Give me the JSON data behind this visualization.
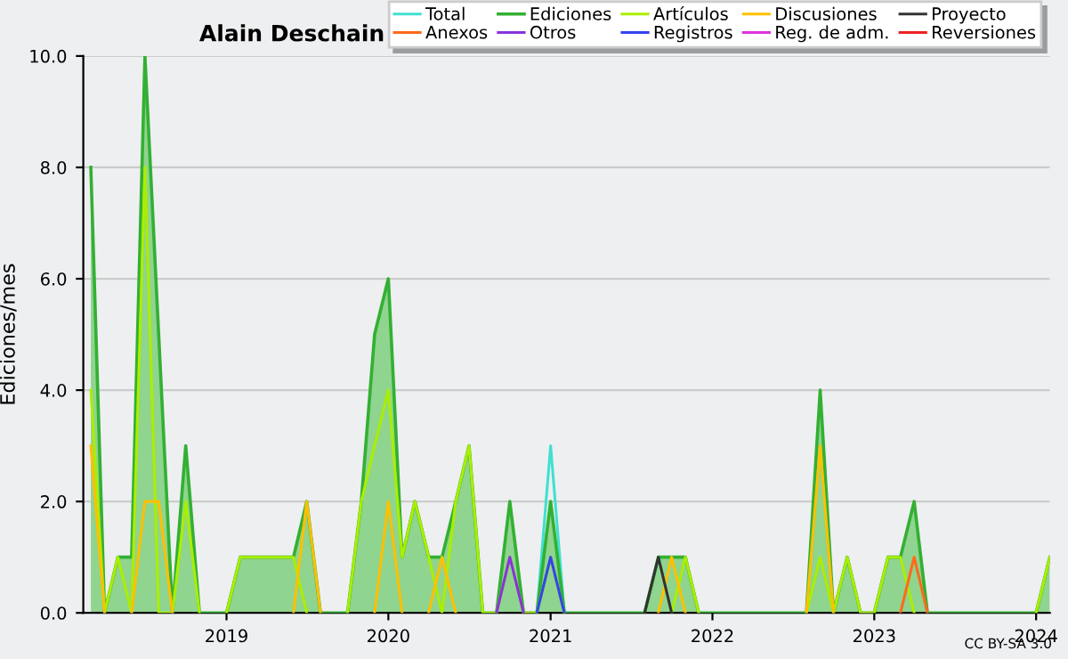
{
  "chart_data": {
    "type": "line",
    "title": "Alain Deschain",
    "ylabel": "Ediciones/mes",
    "x": [
      "2018-03",
      "2018-04",
      "2018-05",
      "2018-06",
      "2018-07",
      "2018-08",
      "2018-09",
      "2018-10",
      "2018-11",
      "2018-12",
      "2019-01",
      "2019-02",
      "2019-03",
      "2019-04",
      "2019-05",
      "2019-06",
      "2019-07",
      "2019-08",
      "2019-09",
      "2019-10",
      "2019-11",
      "2019-12",
      "2020-01",
      "2020-02",
      "2020-03",
      "2020-04",
      "2020-05",
      "2020-06",
      "2020-07",
      "2020-08",
      "2020-09",
      "2020-10",
      "2020-11",
      "2020-12",
      "2021-01",
      "2021-02",
      "2021-03",
      "2021-04",
      "2021-05",
      "2021-06",
      "2021-07",
      "2021-08",
      "2021-09",
      "2021-10",
      "2021-11",
      "2021-12",
      "2022-01",
      "2022-02",
      "2022-03",
      "2022-04",
      "2022-05",
      "2022-06",
      "2022-07",
      "2022-08",
      "2022-09",
      "2022-10",
      "2022-11",
      "2022-12",
      "2023-01",
      "2023-02",
      "2023-03",
      "2023-04",
      "2023-05",
      "2023-06",
      "2023-07",
      "2023-08",
      "2023-09",
      "2023-10",
      "2023-11",
      "2023-12",
      "2024-01",
      "2024-02"
    ],
    "series": [
      {
        "name": "Total",
        "color": "#40e0d0",
        "values": [
          null,
          null,
          null,
          null,
          null,
          null,
          null,
          null,
          null,
          null,
          null,
          null,
          null,
          null,
          null,
          null,
          null,
          null,
          null,
          null,
          null,
          null,
          null,
          null,
          null,
          null,
          null,
          null,
          null,
          null,
          null,
          null,
          null,
          0,
          3,
          0,
          null,
          null,
          null,
          null,
          null,
          null,
          null,
          null,
          null,
          null,
          null,
          null,
          null,
          null,
          null,
          null,
          null,
          null,
          null,
          null,
          null,
          null,
          null,
          null,
          null,
          null,
          null,
          null,
          null,
          null,
          null,
          null,
          null,
          null,
          null,
          null
        ]
      },
      {
        "name": "Ediciones",
        "type": "area",
        "color": "#33b033",
        "values": [
          8,
          0,
          1,
          1,
          10,
          5,
          0,
          3,
          0,
          0,
          0,
          1,
          1,
          1,
          1,
          1,
          2,
          0,
          0,
          0,
          2,
          5,
          6,
          1,
          2,
          1,
          1,
          2,
          3,
          0,
          0,
          2,
          0,
          0,
          2,
          0,
          0,
          0,
          0,
          0,
          0,
          0,
          1,
          1,
          1,
          0,
          0,
          0,
          0,
          0,
          0,
          0,
          0,
          0,
          4,
          0,
          1,
          0,
          0,
          1,
          1,
          2,
          0,
          0,
          0,
          0,
          0,
          0,
          0,
          0,
          0,
          1
        ]
      },
      {
        "name": "Artículos",
        "color": "#aaee00",
        "values": [
          4,
          0,
          1,
          0,
          8,
          0,
          0,
          2,
          0,
          null,
          0,
          1,
          1,
          1,
          1,
          1,
          0,
          null,
          null,
          0,
          2,
          3,
          4,
          1,
          2,
          1,
          0,
          2,
          3,
          0,
          0,
          1,
          0,
          0,
          1,
          0,
          null,
          null,
          null,
          null,
          null,
          null,
          null,
          0,
          1,
          0,
          null,
          null,
          null,
          null,
          null,
          null,
          null,
          0,
          1,
          0,
          1,
          0,
          0,
          1,
          1,
          0,
          null,
          null,
          null,
          null,
          null,
          null,
          null,
          null,
          0,
          1
        ]
      },
      {
        "name": "Discusiones",
        "color": "#ffc000",
        "values": [
          3,
          0,
          null,
          0,
          2,
          2,
          0,
          null,
          null,
          null,
          null,
          null,
          null,
          null,
          null,
          0,
          2,
          0,
          null,
          null,
          null,
          0,
          2,
          0,
          null,
          0,
          1,
          0,
          null,
          null,
          null,
          null,
          null,
          null,
          null,
          null,
          null,
          null,
          null,
          null,
          null,
          null,
          0,
          1,
          0,
          null,
          null,
          null,
          null,
          null,
          null,
          null,
          null,
          0,
          3,
          0,
          null,
          null,
          null,
          null,
          null,
          null,
          null,
          null,
          null,
          null,
          null,
          null,
          null,
          null,
          null,
          null
        ]
      },
      {
        "name": "Proyecto",
        "color": "#333333",
        "values": [
          null,
          null,
          null,
          null,
          null,
          null,
          null,
          null,
          null,
          null,
          null,
          null,
          null,
          null,
          null,
          null,
          null,
          null,
          null,
          null,
          null,
          null,
          null,
          null,
          null,
          null,
          null,
          null,
          null,
          null,
          null,
          null,
          null,
          null,
          null,
          null,
          null,
          null,
          null,
          null,
          null,
          0,
          1,
          0,
          null,
          null,
          null,
          null,
          null,
          null,
          null,
          null,
          null,
          null,
          null,
          null,
          null,
          null,
          null,
          null,
          null,
          null,
          null,
          null,
          null,
          null,
          null,
          null,
          null,
          null,
          null,
          null
        ]
      },
      {
        "name": "Anexos",
        "color": "#ff6a1a",
        "values": [
          null,
          null,
          null,
          null,
          null,
          null,
          null,
          null,
          null,
          null,
          null,
          null,
          null,
          null,
          null,
          null,
          null,
          null,
          null,
          null,
          null,
          null,
          null,
          null,
          null,
          null,
          null,
          null,
          null,
          null,
          null,
          null,
          null,
          null,
          null,
          null,
          null,
          null,
          null,
          null,
          null,
          null,
          null,
          null,
          null,
          null,
          null,
          null,
          null,
          null,
          null,
          null,
          null,
          null,
          null,
          null,
          null,
          null,
          null,
          null,
          0,
          1,
          0,
          null,
          null,
          null,
          null,
          null,
          null,
          null,
          null,
          null
        ]
      },
      {
        "name": "Otros",
        "color": "#8833dd",
        "values": [
          null,
          null,
          null,
          null,
          null,
          null,
          null,
          null,
          null,
          null,
          null,
          null,
          null,
          null,
          null,
          null,
          null,
          null,
          null,
          null,
          null,
          null,
          null,
          null,
          null,
          null,
          null,
          null,
          null,
          null,
          0,
          1,
          0,
          null,
          null,
          null,
          null,
          null,
          null,
          null,
          null,
          null,
          null,
          null,
          null,
          null,
          null,
          null,
          null,
          null,
          null,
          null,
          null,
          null,
          null,
          null,
          null,
          null,
          null,
          null,
          null,
          null,
          null,
          null,
          null,
          null,
          null,
          null,
          null,
          null,
          null,
          null
        ]
      },
      {
        "name": "Registros",
        "color": "#3344ee",
        "values": [
          null,
          null,
          null,
          null,
          null,
          null,
          null,
          null,
          null,
          null,
          null,
          null,
          null,
          null,
          null,
          null,
          null,
          null,
          null,
          null,
          null,
          null,
          null,
          null,
          null,
          null,
          null,
          null,
          null,
          null,
          null,
          null,
          null,
          0,
          1,
          0,
          null,
          null,
          null,
          null,
          null,
          null,
          null,
          null,
          null,
          null,
          null,
          null,
          null,
          null,
          null,
          null,
          null,
          null,
          null,
          null,
          null,
          null,
          null,
          null,
          null,
          null,
          null,
          null,
          null,
          null,
          null,
          null,
          null,
          null,
          null,
          null
        ]
      },
      {
        "name": "Reg. de adm.",
        "color": "#dd33dd",
        "values": [
          null,
          null,
          null,
          null,
          null,
          null,
          null,
          null,
          null,
          null,
          null,
          null,
          null,
          null,
          null,
          null,
          null,
          null,
          null,
          null,
          null,
          null,
          null,
          null,
          null,
          null,
          null,
          null,
          null,
          null,
          null,
          null,
          null,
          null,
          null,
          null,
          null,
          null,
          null,
          null,
          null,
          null,
          null,
          null,
          null,
          null,
          null,
          null,
          null,
          null,
          null,
          null,
          null,
          null,
          null,
          null,
          null,
          null,
          null,
          null,
          null,
          null,
          null,
          null,
          null,
          null,
          null,
          null,
          null,
          null,
          null,
          null
        ]
      },
      {
        "name": "Reversiones",
        "color": "#ee2222",
        "values": [
          null,
          null,
          null,
          null,
          null,
          null,
          null,
          null,
          null,
          null,
          null,
          null,
          null,
          null,
          null,
          null,
          null,
          null,
          null,
          null,
          null,
          null,
          null,
          null,
          null,
          null,
          null,
          null,
          null,
          null,
          null,
          null,
          null,
          null,
          null,
          null,
          null,
          null,
          null,
          null,
          null,
          null,
          null,
          null,
          null,
          null,
          null,
          null,
          null,
          null,
          null,
          null,
          null,
          null,
          null,
          null,
          null,
          null,
          null,
          null,
          null,
          null,
          null,
          null,
          null,
          null,
          null,
          null,
          null,
          null,
          null,
          null
        ]
      }
    ],
    "xlim": [
      "2018-02-12",
      "2024-02"
    ],
    "xticks": [
      {
        "value": "2019-01",
        "label": "2019"
      },
      {
        "value": "2020-01",
        "label": "2020"
      },
      {
        "value": "2021-01",
        "label": "2021"
      },
      {
        "value": "2022-01",
        "label": "2022"
      },
      {
        "value": "2023-01",
        "label": "2023"
      },
      {
        "value": "2024-01",
        "label": "2024"
      }
    ],
    "ylim": [
      0,
      10
    ],
    "yticks": [
      {
        "value": 0,
        "label": "0.0"
      },
      {
        "value": 2,
        "label": "2.0"
      },
      {
        "value": 4,
        "label": "4.0"
      },
      {
        "value": 6,
        "label": "6.0"
      },
      {
        "value": 8,
        "label": "8.0"
      },
      {
        "value": 10,
        "label": "10.0"
      }
    ],
    "grid": "y",
    "legend": "top right",
    "annotations": [
      "CC BY-SA 3.0"
    ]
  }
}
